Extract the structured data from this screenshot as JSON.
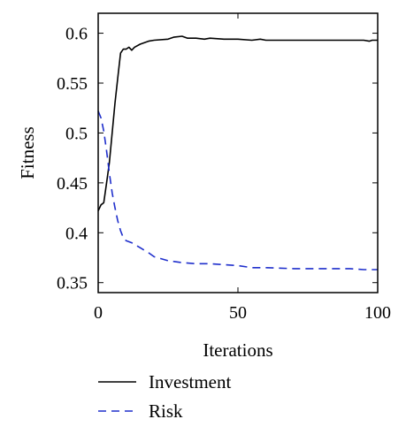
{
  "chart_data": {
    "type": "line",
    "xlabel": "Iterations",
    "ylabel": "Fitness",
    "xlim": [
      0,
      100
    ],
    "ylim": [
      0.34,
      0.62
    ],
    "x_ticks": [
      0,
      50,
      100
    ],
    "y_ticks": [
      0.35,
      0.4,
      0.45,
      0.5,
      0.55,
      0.6
    ],
    "x_tick_labels": [
      "0",
      "50",
      "100"
    ],
    "y_tick_labels": [
      "0.35",
      "0.4",
      "0.45",
      "0.5",
      "0.55",
      "0.6"
    ],
    "grid": false,
    "legend_position": "bottom",
    "series": [
      {
        "name": "Investment",
        "color": "#000000",
        "dash": "solid",
        "x": [
          0,
          1,
          2,
          3,
          4,
          5,
          6,
          7,
          8,
          9,
          10,
          11,
          12,
          13,
          15,
          18,
          20,
          25,
          27,
          30,
          32,
          35,
          38,
          40,
          45,
          50,
          55,
          58,
          60,
          70,
          80,
          90,
          95,
          97,
          98,
          100
        ],
        "y": [
          0.422,
          0.428,
          0.43,
          0.45,
          0.47,
          0.5,
          0.53,
          0.555,
          0.58,
          0.584,
          0.584,
          0.586,
          0.583,
          0.586,
          0.589,
          0.592,
          0.593,
          0.594,
          0.596,
          0.597,
          0.595,
          0.595,
          0.594,
          0.595,
          0.594,
          0.594,
          0.593,
          0.594,
          0.593,
          0.593,
          0.593,
          0.593,
          0.593,
          0.592,
          0.593,
          0.593
        ]
      },
      {
        "name": "Risk",
        "color": "#1f2fcc",
        "dash": "dashed",
        "x": [
          0,
          1,
          2,
          3,
          4,
          5,
          6,
          7,
          8,
          9,
          10,
          12,
          15,
          18,
          20,
          25,
          30,
          35,
          40,
          45,
          50,
          55,
          60,
          70,
          80,
          90,
          95,
          100
        ],
        "y": [
          0.522,
          0.515,
          0.502,
          0.482,
          0.46,
          0.44,
          0.425,
          0.412,
          0.402,
          0.395,
          0.392,
          0.39,
          0.385,
          0.38,
          0.376,
          0.372,
          0.37,
          0.369,
          0.369,
          0.368,
          0.367,
          0.365,
          0.365,
          0.364,
          0.364,
          0.364,
          0.363,
          0.363
        ]
      }
    ]
  }
}
